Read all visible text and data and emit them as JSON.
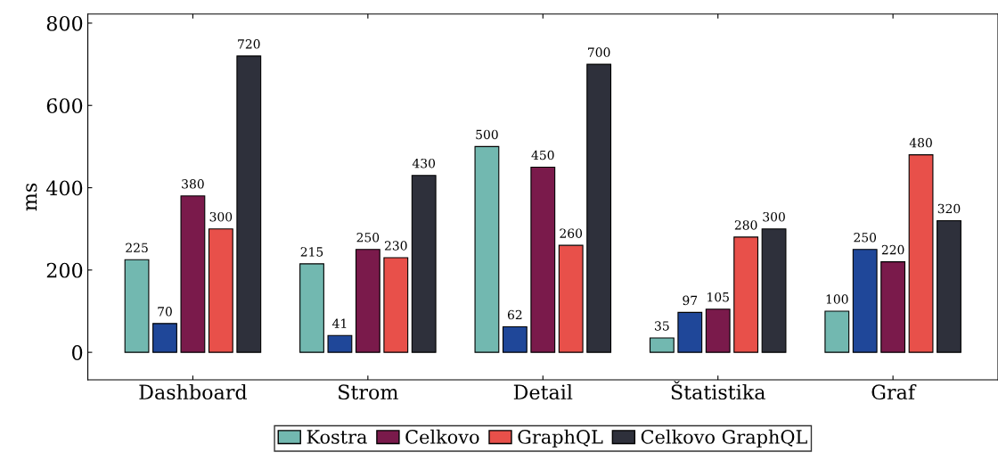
{
  "chart_data": {
    "type": "bar",
    "ylabel": "ms",
    "categories": [
      "Dashboard",
      "Strom",
      "Detail",
      "Štatistika",
      "Graf"
    ],
    "series": [
      {
        "name": "Kostra",
        "color": "#72b8b0",
        "values": [
          225,
          215,
          500,
          35,
          100
        ]
      },
      {
        "color": "#1f4799",
        "values": [
          70,
          41,
          62,
          97,
          250
        ]
      },
      {
        "name": "Celkovo",
        "color": "#7a1a4b",
        "values": [
          380,
          250,
          450,
          105,
          220
        ]
      },
      {
        "name": "GraphQL",
        "color": "#e8504a",
        "values": [
          300,
          230,
          260,
          280,
          480
        ]
      },
      {
        "name": "Celkovo GraphQL",
        "color": "#2e303b",
        "values": [
          720,
          430,
          700,
          300,
          320
        ]
      }
    ],
    "ylim": [
      -67,
      822
    ],
    "yticks": [
      0,
      200,
      400,
      600,
      800
    ],
    "data_labels": true,
    "legend": "bottom",
    "grid": false
  }
}
